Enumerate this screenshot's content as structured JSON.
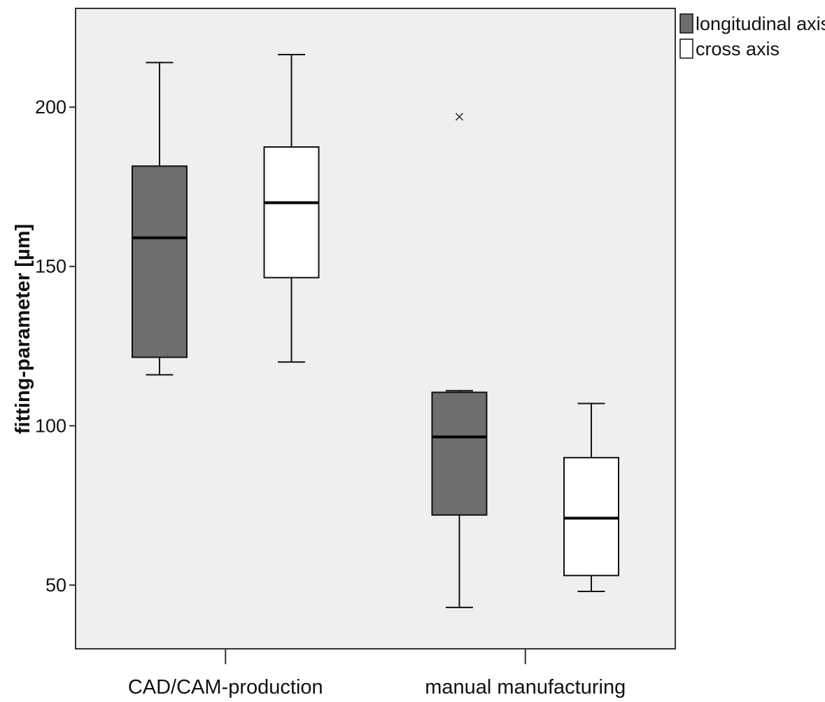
{
  "chart_data": {
    "type": "boxplot",
    "title": "",
    "xlabel": "",
    "ylabel": "fitting-parameter [µm]",
    "ylim": [
      30,
      231
    ],
    "yticks": [
      50,
      100,
      150,
      200
    ],
    "grid": false,
    "legend_position": "outside-top-right",
    "categories": [
      "CAD/CAM-production",
      "manual manufacturing"
    ],
    "series": [
      {
        "name": "longitudinal axis",
        "color": "#6e6e6e",
        "boxes": [
          {
            "min": 116,
            "q1": 121.5,
            "median": 159,
            "q3": 181.5,
            "max": 214,
            "outliers": []
          },
          {
            "min": 43,
            "q1": 72,
            "median": 96.5,
            "q3": 110.5,
            "max": 111,
            "outliers": [
              197
            ]
          }
        ]
      },
      {
        "name": "cross axis",
        "color": "#ffffff",
        "boxes": [
          {
            "min": 120,
            "q1": 146.5,
            "median": 170,
            "q3": 187.5,
            "max": 216.5,
            "outliers": []
          },
          {
            "min": 48,
            "q1": 53,
            "median": 71,
            "q3": 90,
            "max": 107,
            "outliers": []
          }
        ]
      }
    ]
  }
}
